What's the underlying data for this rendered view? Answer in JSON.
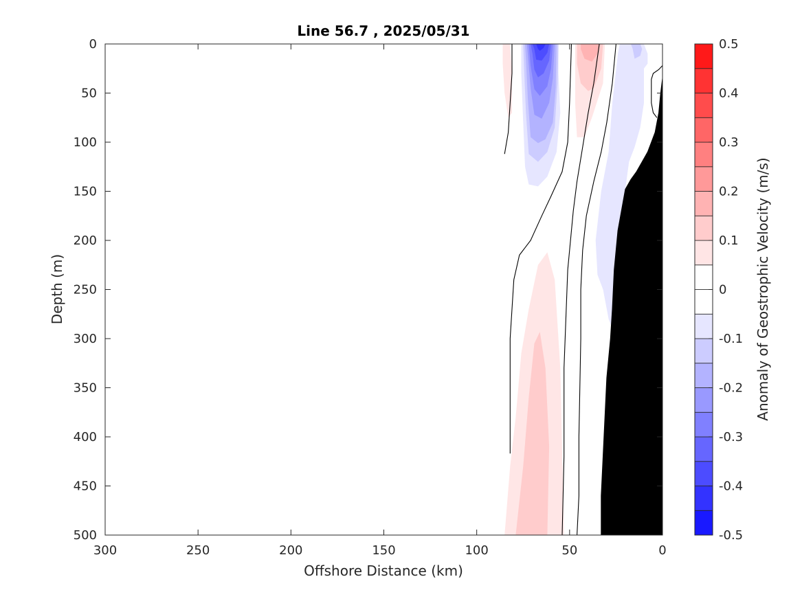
{
  "chart_data": {
    "type": "contour",
    "title": "Line 56.7 , 2025/05/31",
    "xlabel": "Offshore Distance (km)",
    "ylabel": "Depth (m)",
    "xlim": [
      300,
      0
    ],
    "ylim": [
      0,
      500
    ],
    "x_reversed": true,
    "y_reversed": true,
    "xticks": [
      "300",
      "250",
      "200",
      "150",
      "100",
      "50",
      "0"
    ],
    "yticks": [
      "0",
      "50",
      "100",
      "150",
      "200",
      "250",
      "300",
      "350",
      "400",
      "450",
      "500"
    ],
    "colorbar": {
      "label": "Anomaly of Geostrophic Velocity (m/s)",
      "range": [
        -0.5,
        0.5
      ],
      "levels": 20,
      "tick_labels": [
        "0.5",
        "0.4",
        "0.3",
        "0.2",
        "0.1",
        "0",
        "-0.1",
        "-0.2",
        "-0.3",
        "-0.4",
        "-0.5"
      ]
    },
    "features": [
      {
        "kind": "core",
        "sign": "negative",
        "x_km": 66,
        "depth_m": 0,
        "min_value": -0.45
      },
      {
        "kind": "core",
        "sign": "positive",
        "x_km": 84,
        "depth_m": 20,
        "max_value": 0.1
      },
      {
        "kind": "core",
        "sign": "positive",
        "x_km": 38,
        "depth_m": 15,
        "max_value": 0.2
      },
      {
        "kind": "core",
        "sign": "positive",
        "x_km": 66,
        "depth_m": 400,
        "max_value": 0.1
      },
      {
        "kind": "core",
        "sign": "negative",
        "x_km": 25,
        "depth_m": 100,
        "min_value": -0.05
      },
      {
        "kind": "bathymetry",
        "note": "black seafloor on shelf"
      }
    ],
    "regions": [
      {
        "level": 0.05,
        "points": [
          [
            86,
            0
          ],
          [
            82,
            0
          ],
          [
            81,
            30
          ],
          [
            81,
            70
          ],
          [
            83,
            75
          ],
          [
            85,
            50
          ],
          [
            86,
            20
          ]
        ]
      },
      {
        "level": -0.05,
        "points": [
          [
            76,
            0
          ],
          [
            56,
            0
          ],
          [
            56,
            30
          ],
          [
            55,
            70
          ],
          [
            57,
            110
          ],
          [
            62,
            135
          ],
          [
            67,
            145
          ],
          [
            72,
            143
          ],
          [
            74,
            125
          ],
          [
            75,
            80
          ],
          [
            76,
            30
          ]
        ]
      },
      {
        "level": -0.1,
        "points": [
          [
            75,
            0
          ],
          [
            56,
            0
          ],
          [
            56.5,
            40
          ],
          [
            58,
            85
          ],
          [
            62,
            110
          ],
          [
            67,
            120
          ],
          [
            72,
            112
          ],
          [
            73.5,
            70
          ],
          [
            74.5,
            25
          ]
        ]
      },
      {
        "level": -0.15,
        "points": [
          [
            74,
            0
          ],
          [
            57,
            0
          ],
          [
            57.5,
            45
          ],
          [
            59,
            80
          ],
          [
            63,
            97
          ],
          [
            67,
            101
          ],
          [
            71,
            95
          ],
          [
            72.5,
            55
          ],
          [
            73.5,
            15
          ]
        ]
      },
      {
        "level": -0.2,
        "points": [
          [
            73,
            0
          ],
          [
            58,
            0
          ],
          [
            59,
            35
          ],
          [
            61,
            60
          ],
          [
            65,
            76
          ],
          [
            69,
            72
          ],
          [
            71,
            45
          ],
          [
            72.5,
            10
          ]
        ]
      },
      {
        "level": -0.25,
        "points": [
          [
            72,
            0
          ],
          [
            59,
            0
          ],
          [
            60,
            25
          ],
          [
            62,
            43
          ],
          [
            66,
            53
          ],
          [
            69,
            46
          ],
          [
            71,
            22
          ]
        ]
      },
      {
        "level": -0.3,
        "points": [
          [
            71,
            0
          ],
          [
            60,
            0
          ],
          [
            61,
            17
          ],
          [
            64,
            30
          ],
          [
            67,
            34
          ],
          [
            69,
            26
          ],
          [
            70,
            10
          ]
        ]
      },
      {
        "level": -0.35,
        "points": [
          [
            70,
            0
          ],
          [
            61,
            0
          ],
          [
            62,
            9
          ],
          [
            65,
            17
          ],
          [
            68,
            16
          ],
          [
            69,
            5
          ]
        ]
      },
      {
        "level": -0.4,
        "points": [
          [
            68,
            0
          ],
          [
            63,
            0
          ],
          [
            64,
            4
          ],
          [
            66,
            7
          ],
          [
            67,
            5
          ]
        ]
      },
      {
        "level": 0.05,
        "points": [
          [
            47,
            0
          ],
          [
            31,
            0
          ],
          [
            32,
            40
          ],
          [
            38,
            75
          ],
          [
            42,
            95
          ],
          [
            46,
            95
          ],
          [
            47,
            60
          ]
        ]
      },
      {
        "level": 0.1,
        "points": [
          [
            46,
            0
          ],
          [
            32,
            0
          ],
          [
            33,
            25
          ],
          [
            37,
            45
          ],
          [
            40,
            48
          ],
          [
            44,
            40
          ],
          [
            46,
            20
          ]
        ]
      },
      {
        "level": 0.15,
        "points": [
          [
            44,
            0
          ],
          [
            34,
            0
          ],
          [
            35,
            10
          ],
          [
            38,
            18
          ],
          [
            42,
            15
          ],
          [
            44,
            5
          ]
        ]
      },
      {
        "level": -0.05,
        "points": [
          [
            23,
            0
          ],
          [
            10,
            0
          ],
          [
            8,
            10
          ],
          [
            8,
            20
          ],
          [
            10,
            25
          ],
          [
            10,
            35
          ],
          [
            10,
            60
          ],
          [
            12,
            85
          ],
          [
            15,
            105
          ],
          [
            18,
            120
          ],
          [
            20,
            148
          ],
          [
            23,
            188
          ],
          [
            27,
            290
          ],
          [
            29,
            280
          ],
          [
            32,
            250
          ],
          [
            35,
            235
          ],
          [
            36,
            200
          ],
          [
            33,
            150
          ],
          [
            29,
            110
          ],
          [
            27,
            60
          ],
          [
            24,
            10
          ]
        ]
      },
      {
        "level": -0.1,
        "points": [
          [
            17,
            0
          ],
          [
            12,
            0
          ],
          [
            11,
            5
          ],
          [
            12,
            12
          ],
          [
            15,
            15
          ],
          [
            16,
            5
          ]
        ]
      },
      {
        "level": 0.05,
        "points": [
          [
            85,
            500
          ],
          [
            53,
            500
          ],
          [
            55,
            330
          ],
          [
            58,
            240
          ],
          [
            62,
            212
          ],
          [
            67,
            225
          ],
          [
            72,
            270
          ],
          [
            76,
            315
          ],
          [
            79,
            380
          ],
          [
            82,
            430
          ]
        ]
      },
      {
        "level": 0.1,
        "points": [
          [
            79,
            500
          ],
          [
            62,
            500
          ],
          [
            61,
            410
          ],
          [
            63,
            330
          ],
          [
            66,
            293
          ],
          [
            69,
            305
          ],
          [
            72,
            360
          ],
          [
            75,
            430
          ]
        ]
      }
    ],
    "contour_lines": [
      [
        [
          85,
          112
        ],
        [
          83,
          90
        ],
        [
          82,
          60
        ],
        [
          81,
          30
        ],
        [
          81,
          0
        ]
      ],
      [
        [
          49,
          0
        ],
        [
          50,
          60
        ],
        [
          51,
          100
        ],
        [
          54,
          130
        ],
        [
          60,
          155
        ],
        [
          65,
          175
        ],
        [
          71,
          200
        ],
        [
          77,
          215
        ],
        [
          80,
          240
        ],
        [
          82,
          300
        ],
        [
          82,
          417
        ]
      ],
      [
        [
          34,
          0
        ],
        [
          37,
          40
        ],
        [
          40,
          70
        ],
        [
          43,
          105
        ],
        [
          46,
          140
        ],
        [
          48,
          170
        ],
        [
          51,
          230
        ],
        [
          53,
          330
        ],
        [
          53,
          420
        ],
        [
          54,
          500
        ]
      ],
      [
        [
          25,
          0
        ],
        [
          27,
          40
        ],
        [
          30,
          80
        ],
        [
          33,
          110
        ],
        [
          37,
          140
        ],
        [
          41,
          175
        ],
        [
          43,
          210
        ],
        [
          44,
          250
        ],
        [
          44,
          300
        ],
        [
          45,
          400
        ],
        [
          45,
          460
        ],
        [
          46,
          500
        ]
      ],
      [
        [
          0,
          22
        ],
        [
          2,
          26
        ],
        [
          5,
          30
        ],
        [
          6,
          36
        ],
        [
          6,
          50
        ],
        [
          6,
          60
        ],
        [
          5,
          70
        ],
        [
          3,
          75
        ]
      ]
    ],
    "bathymetry": [
      [
        0,
        35
      ],
      [
        1,
        50
      ],
      [
        2,
        70
      ],
      [
        4,
        90
      ],
      [
        6,
        100
      ],
      [
        8,
        110
      ],
      [
        11,
        120
      ],
      [
        14,
        130
      ],
      [
        17,
        138
      ],
      [
        20,
        148
      ],
      [
        24,
        190
      ],
      [
        26,
        230
      ],
      [
        27,
        270
      ],
      [
        28,
        300
      ],
      [
        30,
        340
      ],
      [
        31,
        380
      ],
      [
        32,
        420
      ],
      [
        33,
        460
      ],
      [
        33,
        500
      ],
      [
        0,
        500
      ]
    ]
  }
}
